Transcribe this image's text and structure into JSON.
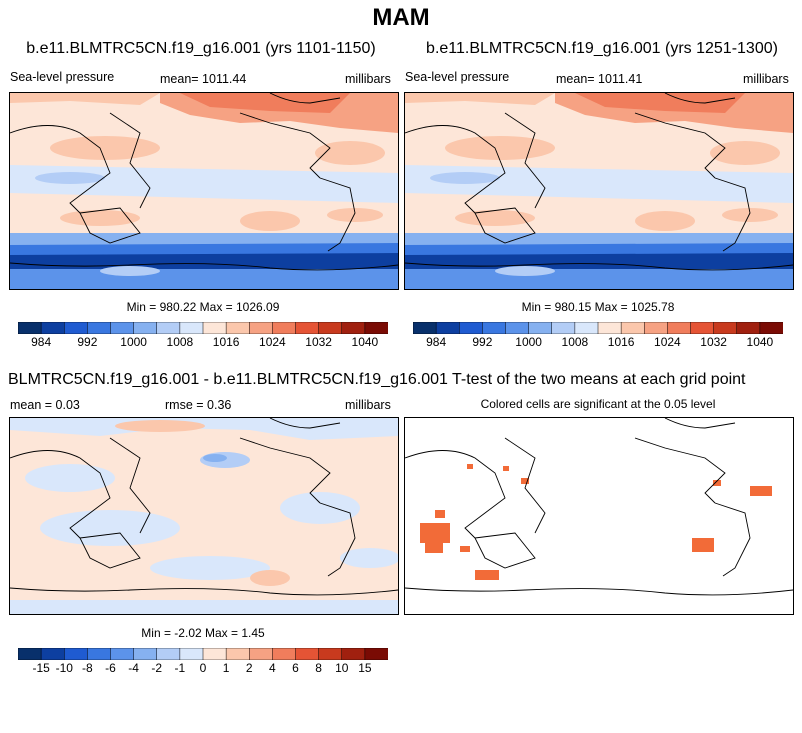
{
  "title": "MAM",
  "colors": {
    "levels_slp": [
      "#08306b",
      "#0d3fa0",
      "#1f5bd1",
      "#3977e0",
      "#5c93ea",
      "#86b1f0",
      "#b3cdf6",
      "#d9e7fb",
      "#fde6d8",
      "#fbc7ac",
      "#f6a283",
      "#f07d5c",
      "#e55435",
      "#c83a1e",
      "#a0200f",
      "#7a0b04"
    ],
    "sig": "#f26b38"
  },
  "panels": [
    {
      "title": "b.e11.BLMTRC5CN.f19_g16.001 (yrs 1101-1150)",
      "left_label": "Sea-level pressure",
      "mid_label": "mean= 1011.44",
      "right_label": "millibars",
      "minmax": "Min = 980.22 Max = 1026.09",
      "colorbar_ticks": [
        "984",
        "992",
        "1000",
        "1008",
        "1016",
        "1024",
        "1032",
        "1040"
      ]
    },
    {
      "title": "b.e11.BLMTRC5CN.f19_g16.001 (yrs 1251-1300)",
      "left_label": "Sea-level pressure",
      "mid_label": "mean= 1011.41",
      "right_label": "millibars",
      "minmax": "Min = 980.15 Max = 1025.78",
      "colorbar_ticks": [
        "984",
        "992",
        "1000",
        "1008",
        "1016",
        "1024",
        "1032",
        "1040"
      ]
    },
    {
      "title": "BLMTRC5CN.f19_g16.001 - b.e11.BLMTRC5CN.f19_g16.001",
      "left_label": "mean =   0.03",
      "mid_label": "rmse =   0.36",
      "right_label": "millibars",
      "minmax": "Min =  -2.02 Max =   1.45",
      "colorbar_ticks": [
        "-15",
        "-10",
        "-8",
        "-6",
        "-4",
        "-2",
        "-1",
        "0",
        "1",
        "2",
        "4",
        "6",
        "8",
        "10",
        "15"
      ]
    },
    {
      "title": "T-test of the two means at each grid point",
      "subtitle": "Colored cells are significant at the 0.05 level"
    }
  ]
}
